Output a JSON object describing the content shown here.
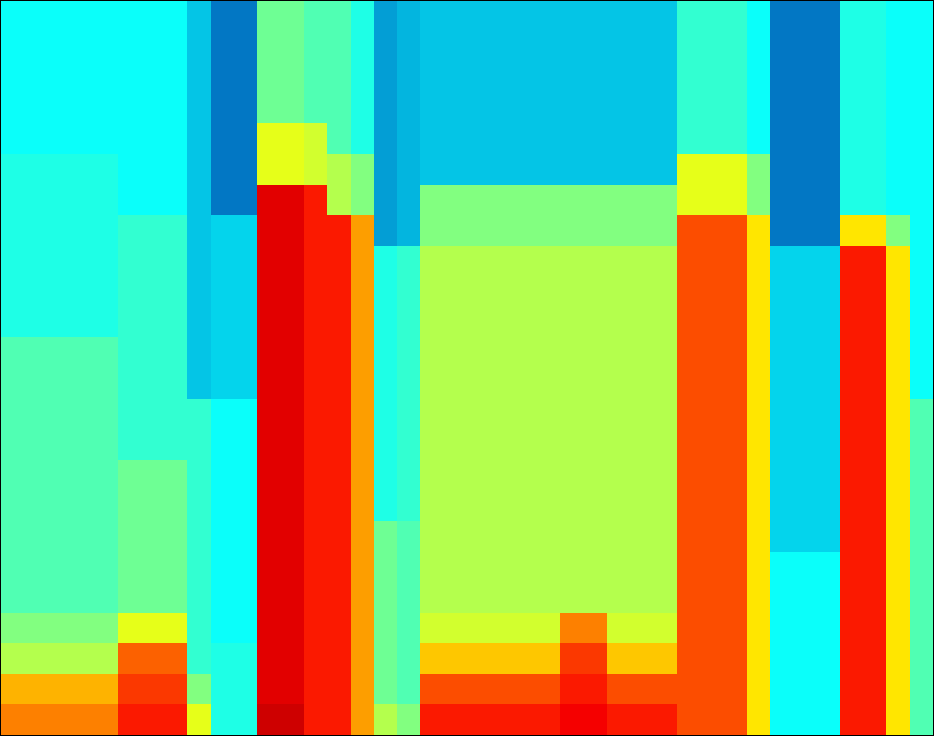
{
  "chart_data": {
    "type": "heatmap",
    "tick_labels": false,
    "grid": false,
    "xlim": [
      -0.5,
      39.5
    ],
    "ylim": [
      -0.5,
      23.5
    ],
    "zlim": [
      0,
      100
    ],
    "cells": [
      [
        75,
        75,
        75,
        75,
        75,
        85,
        85,
        85,
        60,
        40,
        40,
        92,
        92,
        85,
        85,
        72,
        55,
        50,
        85,
        85,
        85,
        85,
        85,
        85,
        88,
        88,
        85,
        85,
        85,
        80,
        80,
        80,
        65,
        38,
        38,
        38,
        85,
        85,
        65,
        45
      ],
      [
        70,
        70,
        70,
        70,
        70,
        82,
        82,
        82,
        50,
        40,
        40,
        90,
        90,
        85,
        85,
        72,
        48,
        45,
        80,
        80,
        80,
        80,
        80,
        80,
        85,
        85,
        80,
        80,
        80,
        80,
        80,
        80,
        65,
        38,
        38,
        38,
        85,
        85,
        65,
        45
      ],
      [
        55,
        55,
        55,
        55,
        55,
        78,
        78,
        78,
        42,
        40,
        40,
        90,
        90,
        85,
        85,
        72,
        48,
        45,
        68,
        68,
        68,
        68,
        68,
        68,
        82,
        82,
        68,
        68,
        68,
        80,
        80,
        80,
        65,
        38,
        38,
        38,
        85,
        85,
        65,
        45
      ],
      [
        50,
        50,
        50,
        50,
        50,
        60,
        60,
        60,
        42,
        38,
        38,
        90,
        90,
        85,
        85,
        72,
        48,
        45,
        58,
        58,
        58,
        58,
        58,
        58,
        75,
        75,
        58,
        58,
        58,
        80,
        80,
        80,
        65,
        38,
        38,
        38,
        85,
        85,
        65,
        45
      ],
      [
        45,
        45,
        45,
        45,
        45,
        48,
        48,
        48,
        42,
        38,
        38,
        90,
        90,
        85,
        85,
        72,
        48,
        45,
        55,
        55,
        55,
        55,
        55,
        55,
        55,
        55,
        55,
        55,
        55,
        80,
        80,
        80,
        65,
        38,
        38,
        38,
        85,
        85,
        65,
        45
      ],
      [
        45,
        45,
        45,
        45,
        45,
        48,
        48,
        48,
        42,
        38,
        38,
        90,
        90,
        85,
        85,
        72,
        48,
        45,
        55,
        55,
        55,
        55,
        55,
        55,
        55,
        55,
        55,
        55,
        55,
        80,
        80,
        80,
        65,
        38,
        38,
        38,
        85,
        85,
        65,
        45
      ],
      [
        45,
        45,
        45,
        45,
        45,
        48,
        48,
        48,
        42,
        38,
        38,
        90,
        90,
        85,
        85,
        72,
        48,
        45,
        55,
        55,
        55,
        55,
        55,
        55,
        55,
        55,
        55,
        55,
        55,
        80,
        80,
        80,
        65,
        32,
        32,
        32,
        85,
        85,
        65,
        45
      ],
      [
        45,
        45,
        45,
        45,
        45,
        48,
        48,
        48,
        42,
        38,
        38,
        90,
        90,
        85,
        85,
        72,
        40,
        42,
        55,
        55,
        55,
        55,
        55,
        55,
        55,
        55,
        55,
        55,
        55,
        80,
        80,
        80,
        65,
        32,
        32,
        32,
        85,
        85,
        65,
        45
      ],
      [
        45,
        45,
        45,
        45,
        45,
        48,
        48,
        48,
        42,
        38,
        38,
        90,
        90,
        85,
        85,
        72,
        40,
        42,
        55,
        55,
        55,
        55,
        55,
        55,
        55,
        55,
        55,
        55,
        55,
        80,
        80,
        80,
        65,
        32,
        32,
        32,
        85,
        85,
        65,
        45
      ],
      [
        45,
        45,
        45,
        45,
        45,
        42,
        42,
        42,
        42,
        38,
        38,
        90,
        90,
        85,
        85,
        72,
        40,
        42,
        55,
        55,
        55,
        55,
        55,
        55,
        55,
        55,
        55,
        55,
        55,
        80,
        80,
        80,
        65,
        32,
        32,
        32,
        85,
        85,
        65,
        45
      ],
      [
        45,
        45,
        45,
        45,
        45,
        42,
        42,
        42,
        42,
        38,
        38,
        90,
        90,
        85,
        85,
        72,
        40,
        42,
        55,
        55,
        55,
        55,
        55,
        55,
        55,
        55,
        55,
        55,
        55,
        80,
        80,
        80,
        65,
        32,
        32,
        32,
        85,
        85,
        65,
        45
      ],
      [
        45,
        45,
        45,
        45,
        45,
        42,
        42,
        42,
        30,
        32,
        32,
        90,
        90,
        85,
        85,
        72,
        40,
        42,
        55,
        55,
        55,
        55,
        55,
        55,
        55,
        55,
        55,
        55,
        55,
        80,
        80,
        80,
        65,
        32,
        32,
        32,
        85,
        85,
        65,
        38
      ],
      [
        45,
        45,
        45,
        45,
        45,
        42,
        42,
        42,
        30,
        32,
        32,
        90,
        90,
        85,
        85,
        72,
        40,
        42,
        55,
        55,
        55,
        55,
        55,
        55,
        55,
        55,
        55,
        55,
        55,
        80,
        80,
        80,
        65,
        32,
        32,
        32,
        85,
        85,
        65,
        38
      ],
      [
        40,
        40,
        40,
        40,
        40,
        42,
        42,
        42,
        30,
        32,
        32,
        90,
        90,
        85,
        85,
        72,
        40,
        42,
        55,
        55,
        55,
        55,
        55,
        55,
        55,
        55,
        55,
        55,
        55,
        80,
        80,
        80,
        65,
        32,
        32,
        32,
        85,
        85,
        65,
        38
      ],
      [
        40,
        40,
        40,
        40,
        40,
        42,
        42,
        42,
        30,
        32,
        32,
        90,
        90,
        85,
        85,
        72,
        40,
        42,
        55,
        55,
        55,
        55,
        55,
        55,
        55,
        55,
        55,
        55,
        55,
        80,
        80,
        80,
        65,
        32,
        32,
        32,
        85,
        85,
        65,
        38
      ],
      [
        40,
        40,
        40,
        40,
        40,
        42,
        42,
        42,
        30,
        32,
        32,
        90,
        90,
        85,
        85,
        72,
        40,
        42,
        55,
        55,
        55,
        55,
        55,
        55,
        55,
        55,
        55,
        55,
        55,
        80,
        80,
        80,
        65,
        32,
        32,
        32,
        85,
        85,
        65,
        38
      ],
      [
        40,
        40,
        40,
        40,
        40,
        42,
        42,
        42,
        30,
        32,
        32,
        90,
        90,
        85,
        85,
        72,
        25,
        28,
        50,
        50,
        50,
        50,
        50,
        50,
        50,
        50,
        50,
        50,
        50,
        80,
        80,
        80,
        65,
        20,
        20,
        20,
        65,
        65,
        50,
        38
      ],
      [
        40,
        40,
        40,
        40,
        40,
        38,
        38,
        38,
        30,
        20,
        20,
        90,
        90,
        85,
        55,
        50,
        25,
        28,
        50,
        50,
        50,
        50,
        50,
        50,
        50,
        50,
        50,
        50,
        50,
        60,
        60,
        60,
        50,
        20,
        20,
        20,
        40,
        40,
        38,
        38
      ],
      [
        40,
        40,
        40,
        40,
        40,
        38,
        38,
        38,
        30,
        20,
        20,
        60,
        60,
        58,
        55,
        50,
        25,
        28,
        30,
        30,
        30,
        30,
        30,
        30,
        30,
        30,
        30,
        30,
        30,
        60,
        60,
        60,
        50,
        20,
        20,
        20,
        40,
        40,
        38,
        38
      ],
      [
        38,
        38,
        38,
        38,
        38,
        38,
        38,
        38,
        30,
        20,
        20,
        60,
        60,
        58,
        45,
        40,
        25,
        28,
        30,
        30,
        30,
        30,
        30,
        30,
        30,
        30,
        30,
        30,
        30,
        42,
        42,
        42,
        38,
        20,
        20,
        20,
        40,
        40,
        38,
        38
      ],
      [
        38,
        38,
        38,
        38,
        38,
        38,
        38,
        38,
        30,
        20,
        20,
        48,
        48,
        45,
        45,
        40,
        25,
        28,
        30,
        30,
        30,
        30,
        30,
        30,
        30,
        30,
        30,
        30,
        30,
        42,
        42,
        42,
        38,
        20,
        20,
        20,
        40,
        40,
        38,
        38
      ],
      [
        38,
        38,
        38,
        38,
        38,
        38,
        38,
        38,
        30,
        20,
        20,
        48,
        48,
        45,
        45,
        40,
        25,
        28,
        30,
        30,
        30,
        30,
        30,
        30,
        30,
        30,
        30,
        30,
        30,
        42,
        42,
        42,
        38,
        20,
        20,
        20,
        40,
        40,
        38,
        38
      ],
      [
        38,
        38,
        38,
        38,
        38,
        38,
        38,
        38,
        30,
        20,
        20,
        48,
        48,
        45,
        45,
        40,
        25,
        28,
        30,
        30,
        30,
        30,
        30,
        30,
        30,
        30,
        30,
        30,
        30,
        42,
        42,
        42,
        38,
        20,
        20,
        20,
        40,
        40,
        38,
        38
      ],
      [
        38,
        38,
        38,
        38,
        38,
        38,
        38,
        38,
        30,
        20,
        20,
        48,
        48,
        45,
        45,
        40,
        25,
        28,
        30,
        30,
        30,
        30,
        30,
        30,
        30,
        30,
        30,
        30,
        30,
        42,
        42,
        42,
        38,
        20,
        20,
        20,
        40,
        40,
        38,
        38
      ]
    ]
  }
}
